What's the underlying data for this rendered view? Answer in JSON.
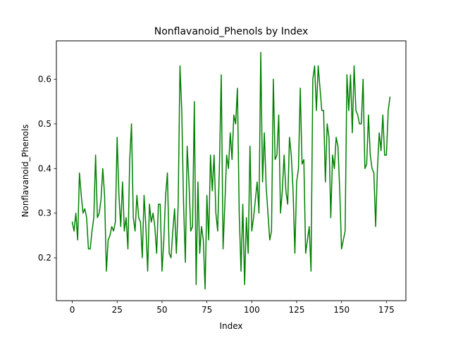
{
  "chart_data": {
    "type": "line",
    "title": "Nonflavanoid_Phenols by Index",
    "xlabel": "Index",
    "ylabel": "Nonflavanoid_Phenols",
    "xlim": [
      -8.85,
      185.85
    ],
    "ylim": [
      0.104,
      0.686
    ],
    "xticks": [
      "0",
      "25",
      "50",
      "75",
      "100",
      "125",
      "150",
      "175"
    ],
    "yticks": [
      "0.2",
      "0.3",
      "0.4",
      "0.5",
      "0.6"
    ],
    "grid": false,
    "legend": "none",
    "series": [
      {
        "color": "#008000",
        "x": [
          0,
          1,
          2,
          3,
          4,
          5,
          6,
          7,
          8,
          9,
          10,
          11,
          12,
          13,
          14,
          15,
          16,
          17,
          18,
          19,
          20,
          21,
          22,
          23,
          24,
          25,
          26,
          27,
          28,
          29,
          30,
          31,
          32,
          33,
          34,
          35,
          36,
          37,
          38,
          39,
          40,
          41,
          42,
          43,
          44,
          45,
          46,
          47,
          48,
          49,
          50,
          51,
          52,
          53,
          54,
          55,
          56,
          57,
          58,
          59,
          60,
          61,
          62,
          63,
          64,
          65,
          66,
          67,
          68,
          69,
          70,
          71,
          72,
          73,
          74,
          75,
          76,
          77,
          78,
          79,
          80,
          81,
          82,
          83,
          84,
          85,
          86,
          87,
          88,
          89,
          90,
          91,
          92,
          93,
          94,
          95,
          96,
          97,
          98,
          99,
          100,
          101,
          102,
          103,
          104,
          105,
          106,
          107,
          108,
          109,
          110,
          111,
          112,
          113,
          114,
          115,
          116,
          117,
          118,
          119,
          120,
          121,
          122,
          123,
          124,
          125,
          126,
          127,
          128,
          129,
          130,
          131,
          132,
          133,
          134,
          135,
          136,
          137,
          138,
          139,
          140,
          141,
          142,
          143,
          144,
          145,
          146,
          147,
          148,
          149,
          150,
          151,
          152,
          153,
          154,
          155,
          156,
          157,
          158,
          159,
          160,
          161,
          162,
          163,
          164,
          165,
          166,
          167,
          168,
          169,
          170,
          171,
          172,
          173,
          174,
          175,
          176,
          177
        ],
        "values": [
          0.28,
          0.26,
          0.3,
          0.24,
          0.39,
          0.34,
          0.3,
          0.31,
          0.29,
          0.22,
          0.22,
          0.26,
          0.29,
          0.43,
          0.29,
          0.3,
          0.33,
          0.4,
          0.34,
          0.17,
          0.24,
          0.25,
          0.27,
          0.26,
          0.28,
          0.47,
          0.34,
          0.27,
          0.37,
          0.26,
          0.29,
          0.22,
          0.42,
          0.5,
          0.29,
          0.26,
          0.34,
          0.29,
          0.28,
          0.2,
          0.34,
          0.27,
          0.17,
          0.32,
          0.28,
          0.3,
          0.27,
          0.21,
          0.32,
          0.32,
          0.17,
          0.24,
          0.34,
          0.39,
          0.21,
          0.2,
          0.26,
          0.31,
          0.21,
          0.32,
          0.63,
          0.53,
          0.32,
          0.19,
          0.45,
          0.37,
          0.26,
          0.27,
          0.55,
          0.14,
          0.37,
          0.21,
          0.27,
          0.24,
          0.13,
          0.34,
          0.24,
          0.43,
          0.35,
          0.43,
          0.3,
          0.26,
          0.41,
          0.61,
          0.22,
          0.32,
          0.43,
          0.4,
          0.48,
          0.42,
          0.52,
          0.5,
          0.58,
          0.3,
          0.17,
          0.32,
          0.14,
          0.29,
          0.21,
          0.45,
          0.26,
          0.29,
          0.33,
          0.37,
          0.3,
          0.66,
          0.37,
          0.48,
          0.36,
          0.3,
          0.24,
          0.26,
          0.6,
          0.42,
          0.43,
          0.52,
          0.3,
          0.35,
          0.43,
          0.35,
          0.32,
          0.47,
          0.43,
          0.35,
          0.21,
          0.37,
          0.4,
          0.58,
          0.41,
          0.42,
          0.21,
          0.24,
          0.27,
          0.17,
          0.6,
          0.63,
          0.53,
          0.63,
          0.58,
          0.53,
          0.53,
          0.37,
          0.5,
          0.47,
          0.29,
          0.43,
          0.4,
          0.47,
          0.45,
          0.35,
          0.22,
          0.24,
          0.26,
          0.61,
          0.53,
          0.61,
          0.48,
          0.63,
          0.53,
          0.52,
          0.5,
          0.5,
          0.6,
          0.4,
          0.41,
          0.52,
          0.43,
          0.4,
          0.39,
          0.27,
          0.4,
          0.48,
          0.44,
          0.52,
          0.43,
          0.43,
          0.53,
          0.56
        ]
      }
    ]
  }
}
